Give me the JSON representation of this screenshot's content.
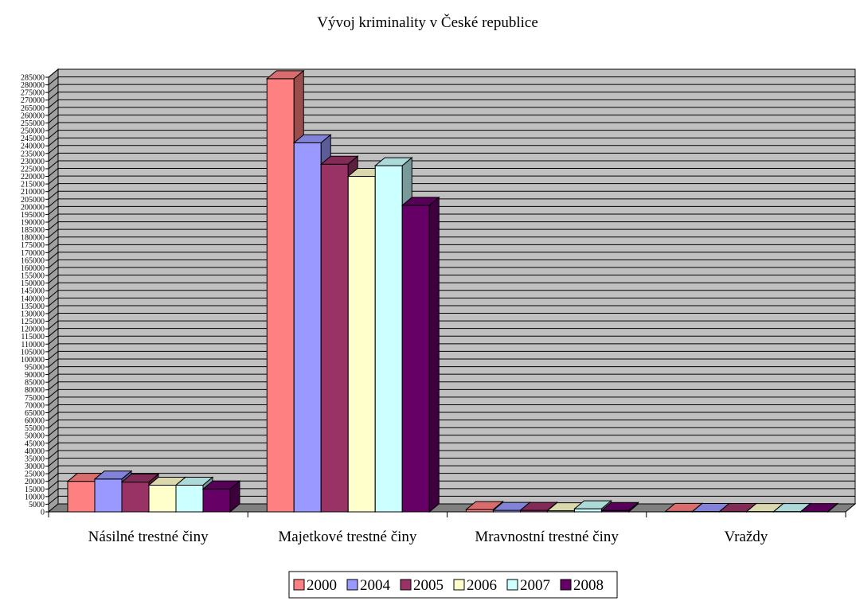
{
  "chart_data": {
    "type": "bar",
    "title": "Vývoj kriminality v České republice",
    "xlabel": "",
    "ylabel": "",
    "categories": [
      "Násilné trestné činy",
      "Majetkové trestné činy",
      "Mravnostní trestné činy",
      "Vraždy"
    ],
    "series": [
      {
        "name": "2000",
        "color": "#ff8080",
        "values": [
          20000,
          284000,
          1500,
          300
        ]
      },
      {
        "name": "2004",
        "color": "#9999ff",
        "values": [
          21500,
          242000,
          1000,
          250
        ]
      },
      {
        "name": "2005",
        "color": "#993366",
        "values": [
          19500,
          228000,
          1000,
          250
        ]
      },
      {
        "name": "2006",
        "color": "#ffffcc",
        "values": [
          17500,
          220000,
          700,
          220
        ]
      },
      {
        "name": "2007",
        "color": "#ccffff",
        "values": [
          17500,
          227000,
          2000,
          220
        ]
      },
      {
        "name": "2008",
        "color": "#660066",
        "values": [
          15000,
          201000,
          900,
          200
        ]
      }
    ],
    "ylim": [
      0,
      285000
    ],
    "ytick_step": 5000,
    "grid": true,
    "legend_position": "bottom",
    "wall_color": "#c0c0c0",
    "floor_color": "#808080"
  }
}
